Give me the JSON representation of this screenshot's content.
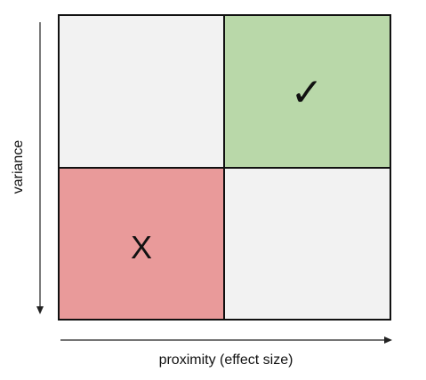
{
  "axes": {
    "x_label": "proximity (effect size)",
    "y_label": "variance"
  },
  "quadrants": {
    "top_left": {
      "mark": "",
      "color": "#f2f2f2"
    },
    "top_right": {
      "mark": "✓",
      "color": "#b9d8a9"
    },
    "bottom_left": {
      "mark": "X",
      "color": "#e99a9a"
    },
    "bottom_right": {
      "mark": "",
      "color": "#f2f2f2"
    }
  },
  "colors": {
    "border": "#111111",
    "arrow": "#222222"
  }
}
